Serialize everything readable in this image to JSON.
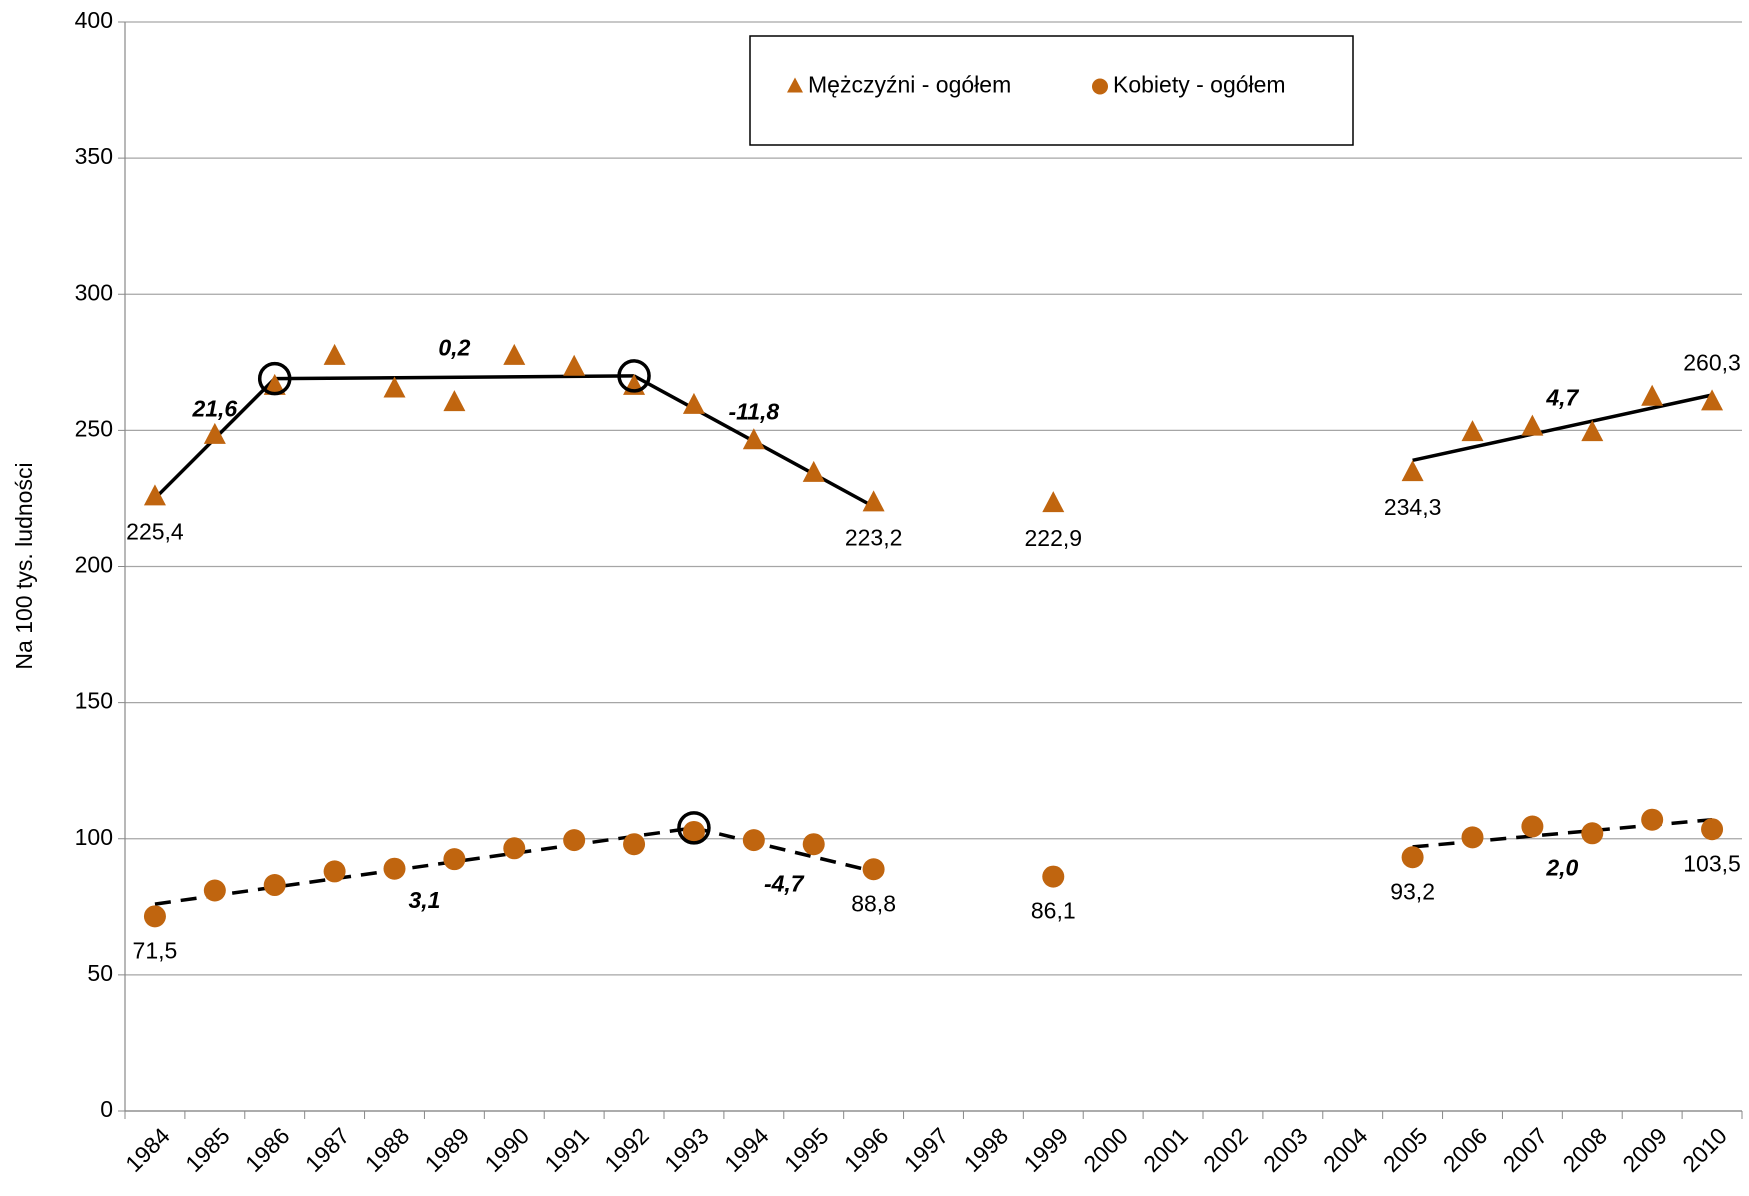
{
  "chart_data": {
    "type": "line",
    "ylabel": "Na 100 tys. ludności",
    "categories": [
      "1984",
      "1985",
      "1986",
      "1987",
      "1988",
      "1989",
      "1990",
      "1991",
      "1992",
      "1993",
      "1994",
      "1995",
      "1996",
      "1997",
      "1998",
      "1999",
      "2000",
      "2001",
      "2002",
      "2003",
      "2004",
      "2005",
      "2006",
      "2007",
      "2008",
      "2009",
      "2010"
    ],
    "series": [
      {
        "name": "Mężczyźni - ogółem",
        "color": "#c0650f",
        "marker": "triangle",
        "values": [
          225.4,
          248,
          266,
          277,
          265,
          260,
          277,
          273,
          266,
          259,
          246,
          234,
          223.2,
          null,
          null,
          222.9,
          null,
          null,
          null,
          null,
          null,
          234.3,
          249,
          251,
          249,
          262,
          260.3
        ],
        "value_labels": [
          "225,4",
          null,
          null,
          null,
          null,
          null,
          null,
          null,
          null,
          null,
          null,
          null,
          "223,2",
          null,
          null,
          "222,9",
          null,
          null,
          null,
          null,
          null,
          "234,3",
          null,
          null,
          null,
          null,
          "260,3"
        ]
      },
      {
        "name": "Kobiety - ogółem",
        "color": "#c0650f",
        "marker": "circle",
        "values": [
          71.5,
          81,
          83,
          88,
          89,
          92.5,
          96.5,
          99.5,
          98,
          102.5,
          99.5,
          98,
          88.8,
          null,
          null,
          86.1,
          null,
          null,
          null,
          null,
          null,
          93.2,
          100.5,
          104.5,
          102,
          107,
          103.5
        ],
        "value_labels": [
          "71,5",
          null,
          null,
          null,
          null,
          null,
          null,
          null,
          null,
          null,
          null,
          null,
          "88,8",
          null,
          null,
          "86,1",
          null,
          null,
          null,
          null,
          null,
          "93,2",
          null,
          null,
          null,
          null,
          "103,5"
        ]
      }
    ],
    "trends": [
      {
        "series": 0,
        "style": "solid",
        "x": [
          "1984",
          "1986"
        ],
        "y": [
          225,
          269
        ],
        "label": "21,6"
      },
      {
        "series": 0,
        "style": "solid",
        "x": [
          "1986",
          "1992"
        ],
        "y": [
          269,
          270
        ],
        "label": "0,2"
      },
      {
        "series": 0,
        "style": "solid",
        "x": [
          "1992",
          "1996"
        ],
        "y": [
          270,
          222
        ],
        "label": "-11,8"
      },
      {
        "series": 0,
        "style": "solid",
        "x": [
          "2005",
          "2010"
        ],
        "y": [
          239,
          263
        ],
        "label": "4,7"
      },
      {
        "series": 1,
        "style": "dashed",
        "x": [
          "1984",
          "1993"
        ],
        "y": [
          76,
          104
        ],
        "label": "3,1"
      },
      {
        "series": 1,
        "style": "dashed",
        "x": [
          "1993",
          "1996"
        ],
        "y": [
          104,
          88
        ],
        "label": "-4,7"
      },
      {
        "series": 1,
        "style": "dashed",
        "x": [
          "2005",
          "2010"
        ],
        "y": [
          97,
          107
        ],
        "label": "2,0"
      }
    ],
    "ylim": [
      0,
      400
    ],
    "yticks": [
      0,
      50,
      100,
      150,
      200,
      250,
      300,
      350,
      400
    ],
    "grid": true,
    "legend": "top"
  }
}
